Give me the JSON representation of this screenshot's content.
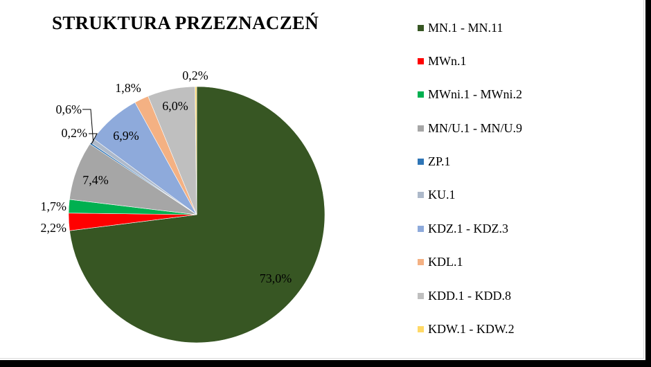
{
  "chart_data": {
    "type": "pie",
    "title": "STRUKTURA PRZEZNACZEŃ",
    "series": [
      {
        "name": "MN.1 - MN.11",
        "value": 73.0,
        "label": "73,0%",
        "color": "#375623"
      },
      {
        "name": "MWn.1",
        "value": 2.2,
        "label": "2,2%",
        "color": "#ff0000"
      },
      {
        "name": "MWni.1 - MWni.2",
        "value": 1.7,
        "label": "1,7%",
        "color": "#00b050"
      },
      {
        "name": "MN/U.1 - MN/U.9",
        "value": 7.4,
        "label": "7,4%",
        "color": "#a6a6a6"
      },
      {
        "name": "ZP.1",
        "value": 0.2,
        "label": "0,2%",
        "color": "#2e75b6"
      },
      {
        "name": "KU.1",
        "value": 0.6,
        "label": "0,6%",
        "color": "#adb9ca"
      },
      {
        "name": "KDZ.1 - KDZ.3",
        "value": 6.9,
        "label": "6,9%",
        "color": "#8eaadb"
      },
      {
        "name": "KDL.1",
        "value": 1.8,
        "label": "1,8%",
        "color": "#f4b183"
      },
      {
        "name": "KDD.1 - KDD.8",
        "value": 6.0,
        "label": "6,0%",
        "color": "#bfbfbf"
      },
      {
        "name": "KDW.1 - KDW.2",
        "value": 0.2,
        "label": "0,2%",
        "color": "#ffd966"
      }
    ],
    "legend_position": "right"
  }
}
